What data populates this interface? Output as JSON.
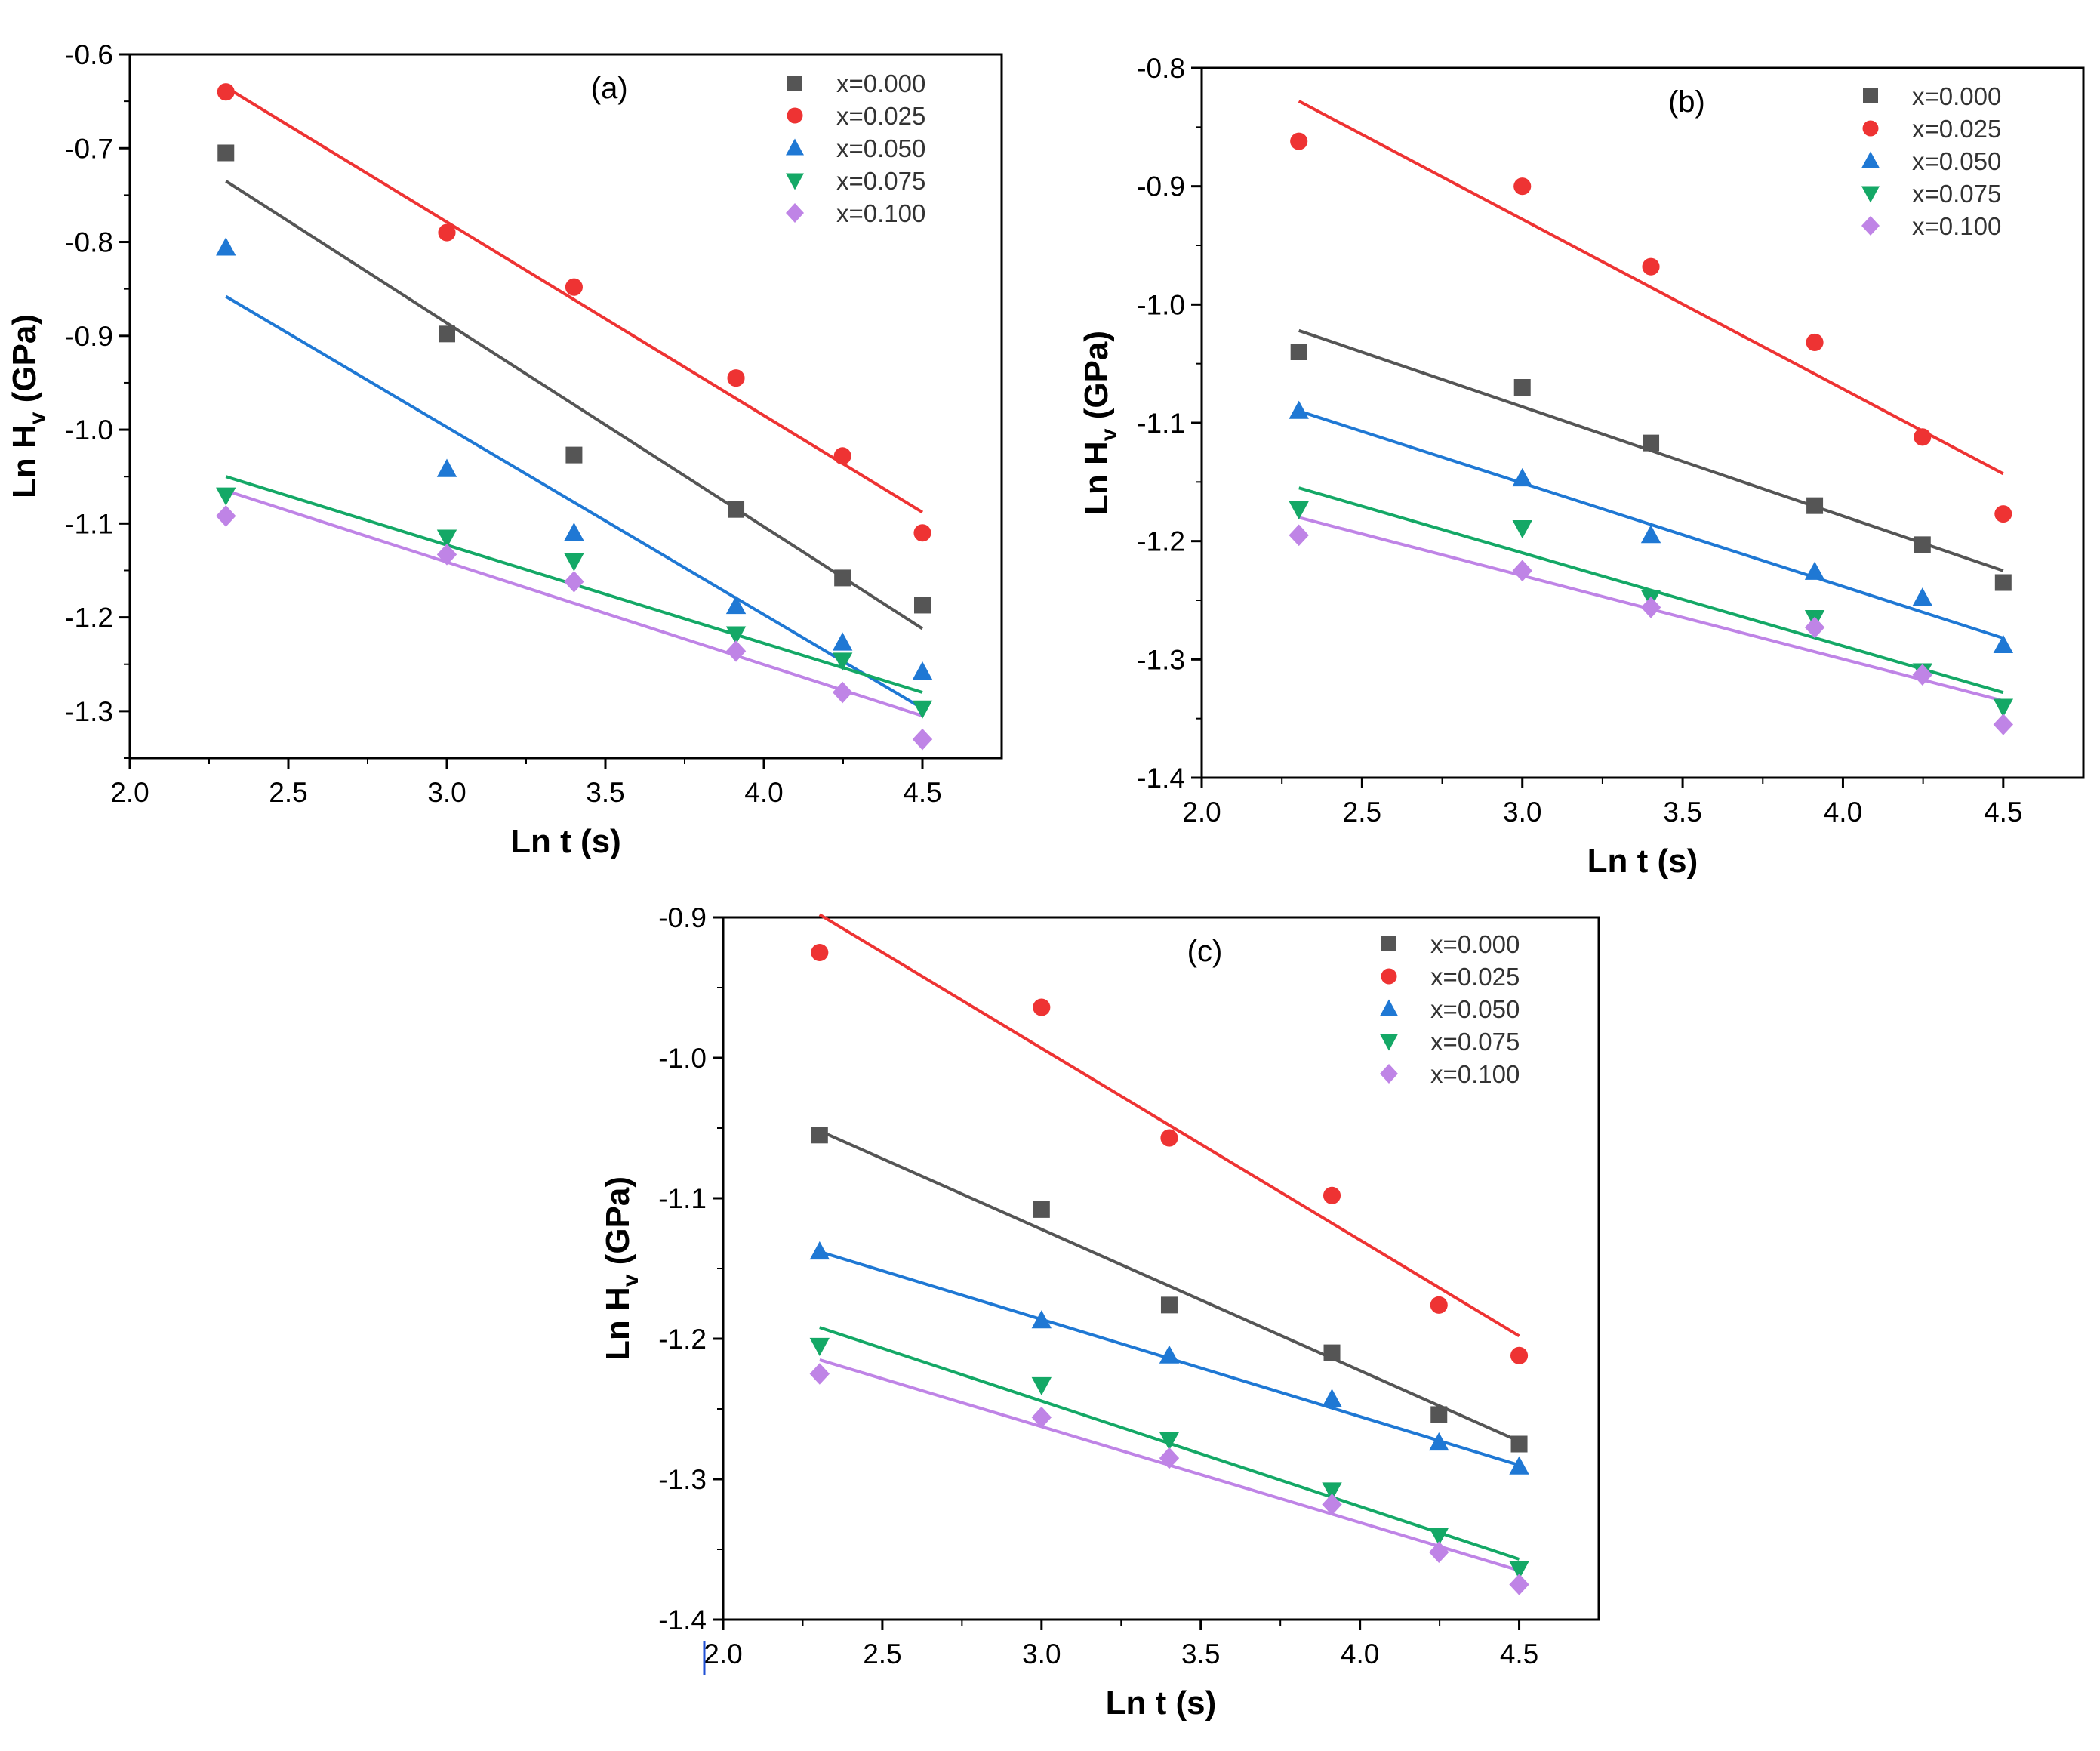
{
  "figure_caption_hint": "",
  "colors": {
    "x=0.000": "#555555",
    "x=0.025": "#ee3333",
    "x=0.050": "#1f78d4",
    "x=0.075": "#14a866",
    "x=0.100": "#bf84e6"
  },
  "markers": {
    "x=0.000": "square",
    "x=0.025": "circle",
    "x=0.050": "triangle-up",
    "x=0.075": "triangle-down",
    "x=0.100": "diamond"
  },
  "chart_data": [
    {
      "type": "scatter",
      "title": "(a)",
      "xlabel": "Ln t (s)",
      "ylabel_main": "Ln H",
      "ylabel_sub": "v",
      "ylabel_unit": " (GPa)",
      "xlim": [
        2.0,
        4.75
      ],
      "ylim": [
        -1.35,
        -0.6
      ],
      "xticks": [
        2.0,
        2.5,
        3.0,
        3.5,
        4.0,
        4.5
      ],
      "xtick_labels": [
        "2.0",
        "2.5",
        "3.0",
        "3.5",
        "4.0",
        "4.5"
      ],
      "yticks": [
        -0.6,
        -0.7,
        -0.8,
        -0.9,
        -1.0,
        -1.1,
        -1.2,
        -1.3
      ],
      "ytick_labels": [
        "-0.6",
        "-0.7",
        "-0.8",
        "-0.9",
        "-1.0",
        "-1.1",
        "-1.2",
        "-1.3"
      ],
      "legend_position": "top-right",
      "x": [
        2.303,
        3.0,
        3.401,
        3.912,
        4.248,
        4.5
      ],
      "series": [
        {
          "name": "x=0.000",
          "values": [
            -0.705,
            -0.898,
            -1.027,
            -1.085,
            -1.158,
            -1.187
          ],
          "fit": [
            -0.735,
            -1.212
          ]
        },
        {
          "name": "x=0.025",
          "values": [
            -0.64,
            -0.79,
            -0.848,
            -0.945,
            -1.028,
            -1.11
          ],
          "fit": [
            -0.635,
            -1.088
          ]
        },
        {
          "name": "x=0.050",
          "values": [
            -0.806,
            -1.042,
            -1.11,
            -1.188,
            -1.227,
            -1.258
          ],
          "fit": [
            -0.858,
            -1.297
          ]
        },
        {
          "name": "x=0.075",
          "values": [
            -1.07,
            -1.115,
            -1.14,
            -1.218,
            -1.246,
            -1.297
          ],
          "fit": [
            -1.05,
            -1.28
          ]
        },
        {
          "name": "x=0.100",
          "values": [
            -1.092,
            -1.133,
            -1.162,
            -1.236,
            -1.28,
            -1.33
          ],
          "fit": [
            -1.065,
            -1.305
          ]
        }
      ]
    },
    {
      "type": "scatter",
      "title": "(b)",
      "xlabel": "Ln t (s)",
      "ylabel_main": "Ln H",
      "ylabel_sub": "v",
      "ylabel_unit": " (GPa)",
      "xlim": [
        2.0,
        4.75
      ],
      "ylim": [
        -1.4,
        -0.8
      ],
      "xticks": [
        2.0,
        2.5,
        3.0,
        3.5,
        4.0,
        4.5
      ],
      "xtick_labels": [
        "2.0",
        "2.5",
        "3.0",
        "3.5",
        "4.0",
        "4.5"
      ],
      "yticks": [
        -0.8,
        -0.9,
        -1.0,
        -1.1,
        -1.2,
        -1.3,
        -1.4
      ],
      "ytick_labels": [
        "-0.8",
        "-0.9",
        "-1.0",
        "-1.1",
        "-1.2",
        "-1.3",
        "-1.4"
      ],
      "legend_position": "top-right",
      "x": [
        2.303,
        3.0,
        3.401,
        3.912,
        4.248,
        4.5
      ],
      "series": [
        {
          "name": "x=0.000",
          "values": [
            -1.04,
            -1.07,
            -1.117,
            -1.17,
            -1.203,
            -1.235
          ],
          "fit": [
            -1.022,
            -1.225
          ]
        },
        {
          "name": "x=0.025",
          "values": [
            -0.862,
            -0.9,
            -0.968,
            -1.032,
            -1.112,
            -1.177
          ],
          "fit": [
            -0.828,
            -1.143
          ]
        },
        {
          "name": "x=0.050",
          "values": [
            -1.09,
            -1.147,
            -1.195,
            -1.226,
            -1.248,
            -1.288
          ],
          "fit": [
            -1.09,
            -1.282
          ]
        },
        {
          "name": "x=0.075",
          "values": [
            -1.173,
            -1.189,
            -1.248,
            -1.265,
            -1.31,
            -1.34
          ],
          "fit": [
            -1.155,
            -1.328
          ]
        },
        {
          "name": "x=0.100",
          "values": [
            -1.195,
            -1.225,
            -1.256,
            -1.273,
            -1.313,
            -1.355
          ],
          "fit": [
            -1.18,
            -1.335
          ]
        }
      ]
    },
    {
      "type": "scatter",
      "title": "(c)",
      "xlabel": "Ln t (s)",
      "ylabel_main": "Ln H",
      "ylabel_sub": "v",
      "ylabel_unit": " (GPa)",
      "xlim": [
        2.0,
        4.75
      ],
      "ylim": [
        -1.4,
        -0.9
      ],
      "xticks": [
        2.0,
        2.5,
        3.0,
        3.5,
        4.0,
        4.5
      ],
      "xtick_labels": [
        "2.0",
        "2.5",
        "3.0",
        "3.5",
        "4.0",
        "4.5"
      ],
      "yticks": [
        -0.9,
        -1.0,
        -1.1,
        -1.2,
        -1.3,
        -1.4
      ],
      "ytick_labels": [
        "-0.9",
        "-1.0",
        "-1.1",
        "-1.2",
        "-1.3",
        "-1.4"
      ],
      "legend_position": "top-right",
      "x": [
        2.303,
        3.0,
        3.401,
        3.912,
        4.248,
        4.5
      ],
      "series": [
        {
          "name": "x=0.000",
          "values": [
            -1.055,
            -1.108,
            -1.176,
            -1.21,
            -1.254,
            -1.275
          ],
          "fit": [
            -1.052,
            -1.273
          ]
        },
        {
          "name": "x=0.025",
          "values": [
            -0.925,
            -0.964,
            -1.057,
            -1.098,
            -1.176,
            -1.212
          ],
          "fit": [
            -0.898,
            -1.198
          ]
        },
        {
          "name": "x=0.050",
          "values": [
            -1.138,
            -1.187,
            -1.212,
            -1.243,
            -1.274,
            -1.291
          ],
          "fit": [
            -1.138,
            -1.29
          ]
        },
        {
          "name": "x=0.075",
          "values": [
            -1.205,
            -1.233,
            -1.272,
            -1.308,
            -1.34,
            -1.364
          ],
          "fit": [
            -1.192,
            -1.357
          ]
        },
        {
          "name": "x=0.100",
          "values": [
            -1.225,
            -1.256,
            -1.285,
            -1.318,
            -1.352,
            -1.375
          ],
          "fit": [
            -1.215,
            -1.365
          ]
        }
      ]
    }
  ]
}
